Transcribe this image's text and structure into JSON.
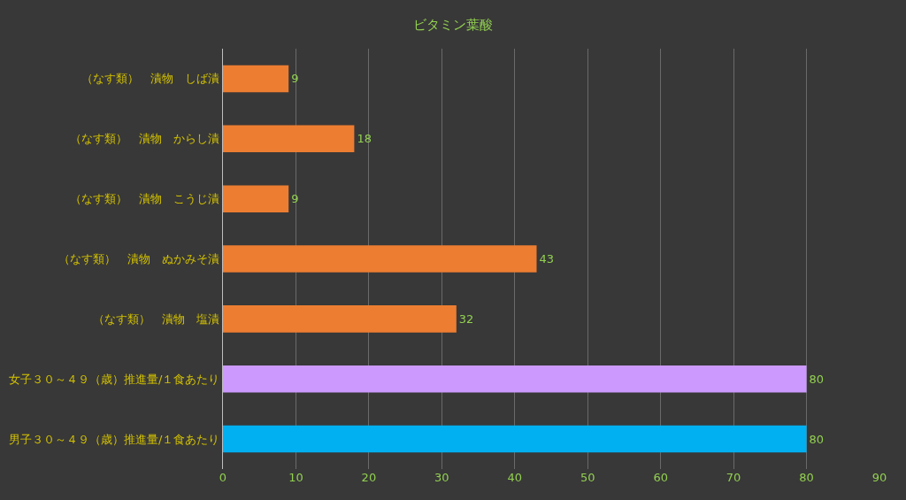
{
  "chart_data": {
    "type": "bar",
    "orientation": "horizontal",
    "title": "ビタミン葉酸",
    "categories": [
      "（なす類）　漬物　しば漬",
      "（なす類）　漬物　からし漬",
      "（なす類）　漬物　こうじ漬",
      "（なす類）　漬物　ぬかみそ漬",
      "（なす類）　漬物　塩漬",
      "女子３０～４９（歳）推進量/１食あたり",
      "男子３０～４９（歳）推進量/１食あたり"
    ],
    "values": [
      9,
      18,
      9,
      43,
      32,
      80,
      80
    ],
    "colors": [
      "#ed7d31",
      "#ed7d31",
      "#ed7d31",
      "#ed7d31",
      "#ed7d31",
      "#cc99ff",
      "#00b0f0"
    ],
    "xlim": [
      0,
      90
    ],
    "xticks": [
      0,
      10,
      20,
      30,
      40,
      50,
      60,
      70,
      80,
      90
    ],
    "grid": "x",
    "data_labels": true,
    "legend": false
  }
}
